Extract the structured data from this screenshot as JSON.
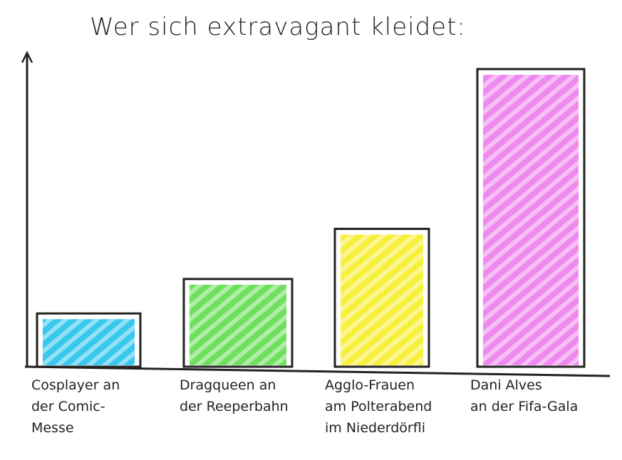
{
  "chart_data": {
    "type": "bar",
    "title": "Wer sich extravagant kleidet:",
    "categories": [
      "Cosplayer an\nder Comic-\nMesse",
      "Dragqueen an\nder Reeperbahn",
      "Agglo-Frauen\nam Polterabend\nim Niederdörfli",
      "Dani Alves\nan der Fifa-Gala"
    ],
    "values": [
      17,
      28,
      44,
      95
    ],
    "colors": [
      "#38c8ee",
      "#6ee05e",
      "#f6f03a",
      "#ee8aee"
    ],
    "ylim": [
      0,
      100
    ]
  }
}
